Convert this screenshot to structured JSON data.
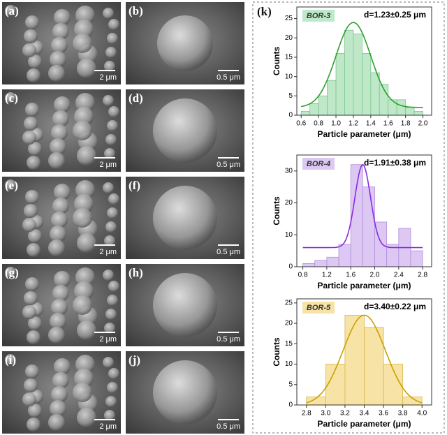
{
  "panels": [
    {
      "label": "(a)",
      "scale": "2 μm"
    },
    {
      "label": "(b)",
      "scale": "0.5 μm"
    },
    {
      "label": "(c)",
      "scale": "2 μm"
    },
    {
      "label": "(d)",
      "scale": "0.5 μm"
    },
    {
      "label": "(e)",
      "scale": "2 μm"
    },
    {
      "label": "(f)",
      "scale": "0.5 μm"
    },
    {
      "label": "(g)",
      "scale": "2 μm"
    },
    {
      "label": "(h)",
      "scale": "0.5 μm"
    },
    {
      "label": "(i)",
      "scale": "2 μm"
    },
    {
      "label": "(j)",
      "scale": "0.5 μm"
    }
  ],
  "chart_label": "(k)",
  "chart_data": [
    {
      "type": "histogram",
      "tag": "BOR-3",
      "annotation": "d=1.23±0.25 μm",
      "xlabel": "Particle parameter (μm)",
      "ylabel": "Counts",
      "bins": [
        0.6,
        0.7,
        0.8,
        0.9,
        1.0,
        1.1,
        1.2,
        1.3,
        1.4,
        1.5,
        1.6,
        1.7,
        1.8,
        1.9,
        2.0
      ],
      "values": [
        1,
        3,
        5,
        9,
        16,
        22,
        21,
        16,
        11,
        8,
        4,
        4,
        2,
        1
      ],
      "color": "#bfe8c9",
      "edgecolor": "#7cc68f",
      "tagcolor": "#bfe8c9",
      "xlim": [
        0.55,
        2.1
      ],
      "ylim": [
        0,
        28
      ],
      "xticks": [
        0.6,
        0.8,
        {
          "value": 1.0,
          "label": "1.0"
        },
        1.2,
        1.4,
        1.6,
        1.8,
        {
          "value": 2.0,
          "label": "2.0"
        }
      ],
      "yticks": [
        0,
        5,
        10,
        15,
        20,
        25
      ],
      "fit": {
        "center": 1.2,
        "sigma": 0.2,
        "amplitude": 22,
        "offset": 2,
        "color": "#2ca02c"
      }
    },
    {
      "type": "histogram",
      "tag": "BOR-4",
      "annotation": "d=1.91±0.38 μm",
      "xlabel": "Particle parameter (μm)",
      "ylabel": "Counts",
      "bins": [
        0.8,
        1.0,
        1.2,
        1.4,
        1.6,
        1.8,
        2.0,
        2.2,
        2.4,
        2.6,
        2.8
      ],
      "values": [
        1,
        2,
        3,
        7,
        32,
        25,
        14,
        7,
        12,
        5
      ],
      "color": "#dcc8f2",
      "edgecolor": "#b08fd8",
      "tagcolor": "#dcc8f2",
      "xlim": [
        0.7,
        2.95
      ],
      "ylim": [
        0,
        35
      ],
      "xticks": [
        0.8,
        1.2,
        1.6,
        {
          "value": 2.0,
          "label": "2.0"
        },
        2.4,
        2.8
      ],
      "yticks": [
        0,
        10,
        20,
        30
      ],
      "fit": {
        "center": 1.8,
        "sigma": 0.13,
        "amplitude": 26,
        "offset": 6,
        "color": "#8a2be2"
      }
    },
    {
      "type": "histogram",
      "tag": "BOR-5",
      "annotation": "d=3.40±0.22 μm",
      "xlabel": "Particle parameter (μm)",
      "ylabel": "Counts",
      "bins": [
        2.8,
        3.0,
        3.2,
        3.4,
        3.6,
        3.8,
        4.0
      ],
      "values": [
        2,
        10,
        22,
        19,
        10,
        2
      ],
      "color": "#f7e3a6",
      "edgecolor": "#d9b74a",
      "tagcolor": "#f7e3a6",
      "xlim": [
        2.7,
        4.1
      ],
      "ylim": [
        0,
        26
      ],
      "xticks": [
        2.8,
        {
          "value": 3.0,
          "label": "3.0"
        },
        3.2,
        3.4,
        3.6,
        3.8,
        {
          "value": 4.0,
          "label": "4.0"
        }
      ],
      "yticks": [
        0,
        5,
        10,
        15,
        20,
        25
      ],
      "fit": {
        "center": 3.4,
        "sigma": 0.22,
        "amplitude": 22,
        "offset": 0,
        "color": "#c9a000"
      }
    }
  ]
}
